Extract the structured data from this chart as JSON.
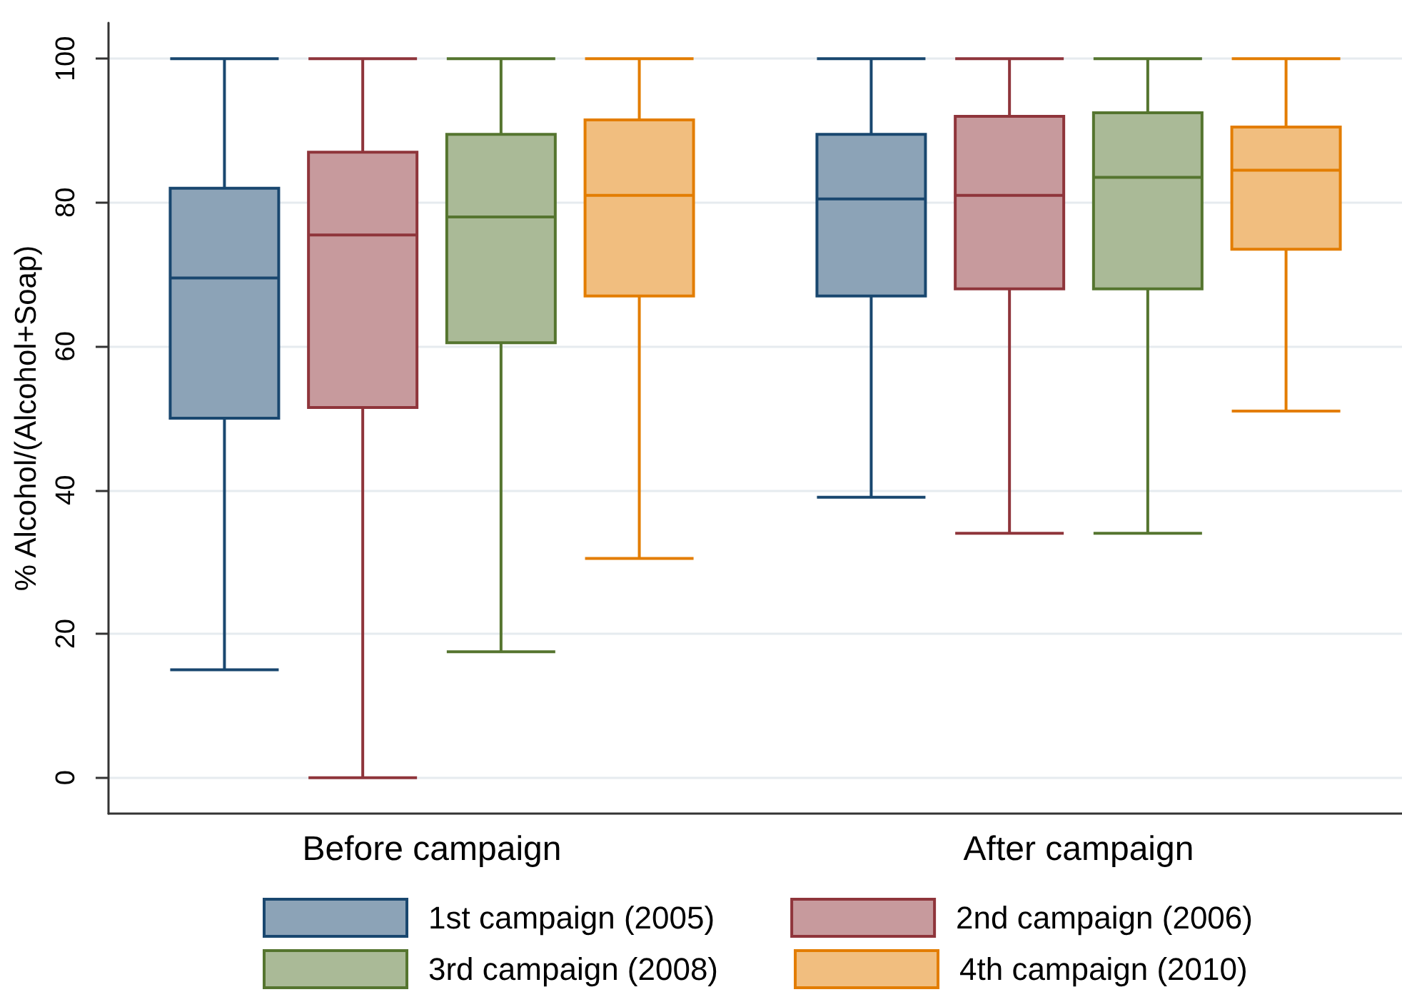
{
  "chart_data": {
    "type": "box",
    "ylabel": "% Alcohol/(Alcohol+Soap)",
    "categories": [
      "Before campaign",
      "After campaign"
    ],
    "series": [
      {
        "name": "1st campaign (2005)",
        "color": "#8ca3b7",
        "boxes": [
          {
            "low": 15,
            "q1": 50,
            "median": 69.5,
            "q3": 82,
            "high": 100
          },
          {
            "low": 39,
            "q1": 67,
            "median": 80.5,
            "q3": 89.5,
            "high": 100
          }
        ]
      },
      {
        "name": "2nd campaign (2006)",
        "color": "#c79a9d",
        "boxes": [
          {
            "low": 0,
            "q1": 51.5,
            "median": 75.5,
            "q3": 87,
            "high": 100
          },
          {
            "low": 34,
            "q1": 68,
            "median": 81,
            "q3": 92,
            "high": 100
          }
        ]
      },
      {
        "name": "3rd campaign (2008)",
        "color": "#aaba97",
        "boxes": [
          {
            "low": 17.5,
            "q1": 60.5,
            "median": 78,
            "q3": 89.5,
            "high": 100
          },
          {
            "low": 34,
            "q1": 68,
            "median": 83.5,
            "q3": 92.5,
            "high": 100
          }
        ]
      },
      {
        "name": "4th campaign (2010)",
        "color": "#f1be7f",
        "boxes": [
          {
            "low": 30.5,
            "q1": 67,
            "median": 81,
            "q3": 91.5,
            "high": 100
          },
          {
            "low": 51,
            "q1": 73.5,
            "median": 84.5,
            "q3": 90.5,
            "high": 100
          }
        ]
      }
    ],
    "ylim": [
      -5,
      105
    ],
    "yticks": [
      0,
      20,
      40,
      60,
      80,
      100
    ],
    "grid": "y",
    "legend": "bottom"
  }
}
